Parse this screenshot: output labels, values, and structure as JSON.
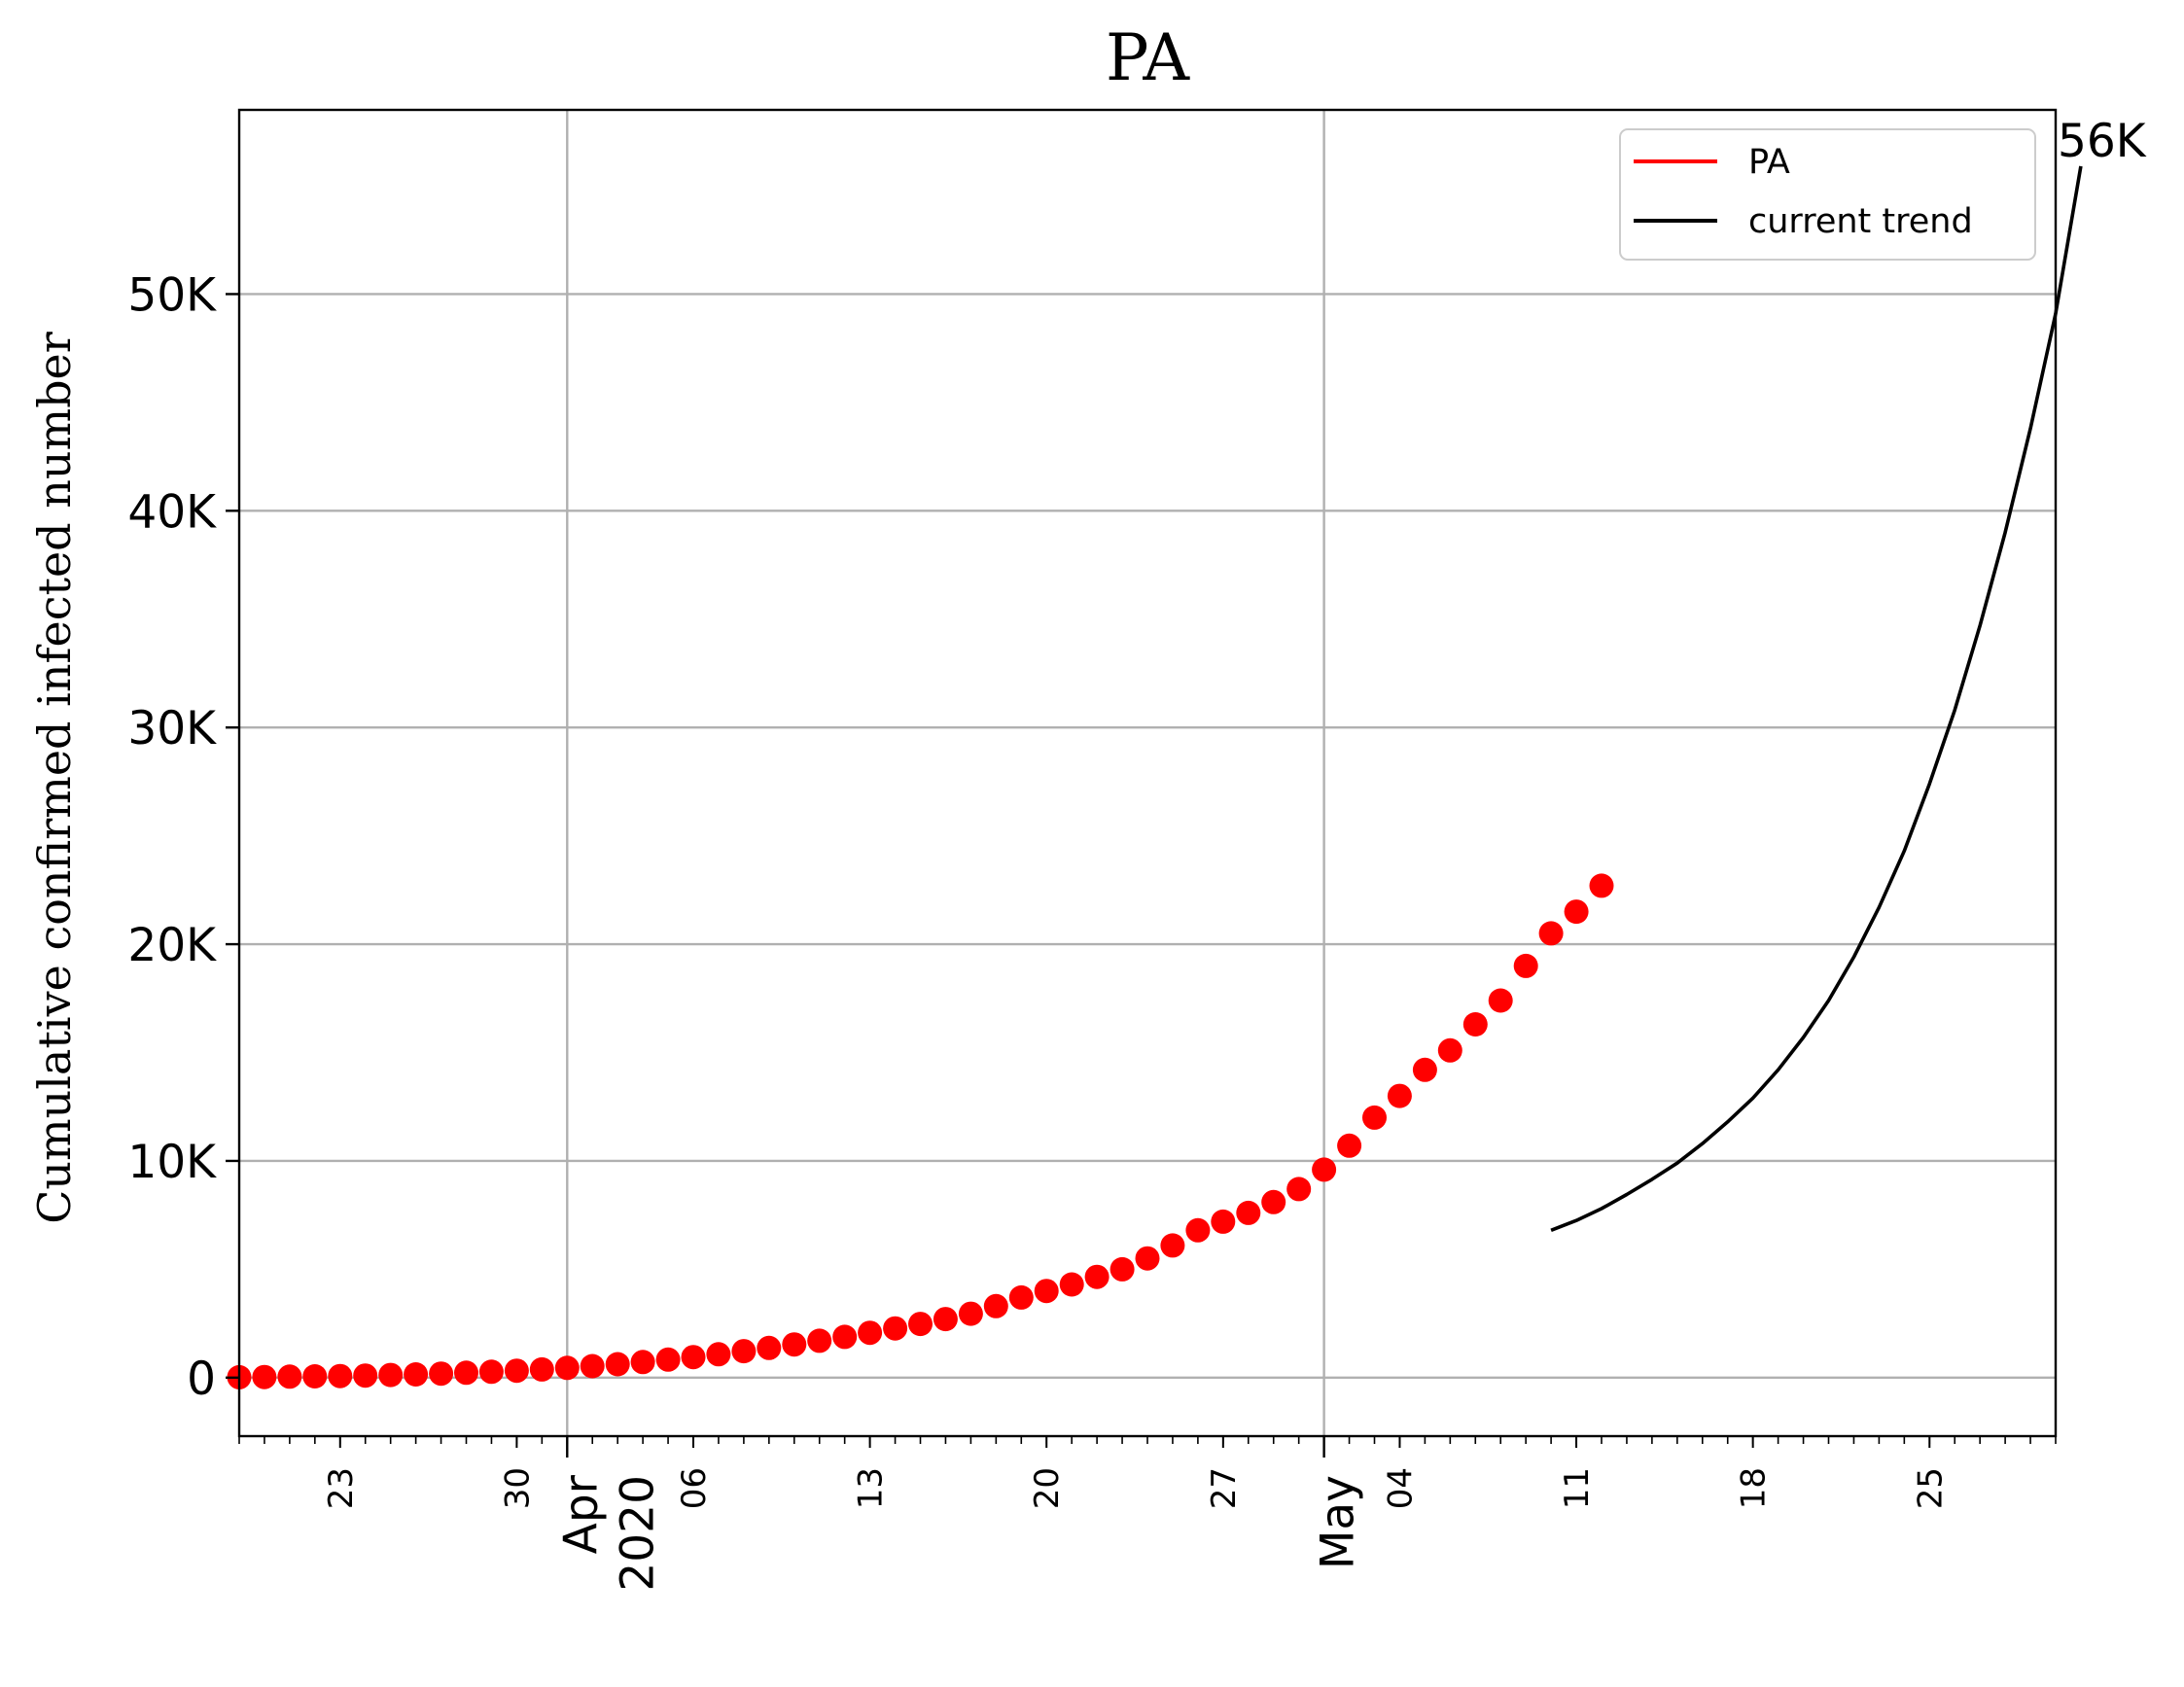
{
  "chart_data": {
    "type": "scatter",
    "title": "PA",
    "xlabel": "",
    "ylabel": "Cumulative confirmed infected number",
    "x_range": [
      "2020-03-19",
      "2020-05-30"
    ],
    "y_range": [
      -2700,
      58500
    ],
    "y_ticks": [
      {
        "value": 0,
        "label": "0"
      },
      {
        "value": 10000,
        "label": "10K"
      },
      {
        "value": 20000,
        "label": "20K"
      },
      {
        "value": 30000,
        "label": "30K"
      },
      {
        "value": 40000,
        "label": "40K"
      },
      {
        "value": 50000,
        "label": "50K"
      }
    ],
    "x_minor_ticks": [
      {
        "date": "2020-03-23",
        "label": "23"
      },
      {
        "date": "2020-03-30",
        "label": "30"
      },
      {
        "date": "2020-04-06",
        "label": "06"
      },
      {
        "date": "2020-04-13",
        "label": "13"
      },
      {
        "date": "2020-04-20",
        "label": "20"
      },
      {
        "date": "2020-04-27",
        "label": "27"
      },
      {
        "date": "2020-05-04",
        "label": "04"
      },
      {
        "date": "2020-05-11",
        "label": "11"
      },
      {
        "date": "2020-05-18",
        "label": "18"
      },
      {
        "date": "2020-05-25",
        "label": "25"
      }
    ],
    "x_major_ticks": [
      {
        "date": "2020-04-01",
        "label": "Apr\n2020"
      },
      {
        "date": "2020-05-01",
        "label": "May"
      }
    ],
    "grid": true,
    "legend_position": "top-right",
    "series": [
      {
        "name": "PA",
        "kind": "markers",
        "color": "#ff0000",
        "start_date": "2020-03-19",
        "values": [
          20,
          30,
          45,
          60,
          75,
          95,
          120,
          150,
          185,
          225,
          270,
          320,
          380,
          450,
          530,
          620,
          720,
          830,
          950,
          1080,
          1220,
          1370,
          1530,
          1700,
          1880,
          2070,
          2270,
          2480,
          2700,
          2950,
          3300,
          3700,
          4000,
          4300,
          4650,
          5000,
          5500,
          6100,
          6800,
          7200,
          7600,
          8100,
          8700,
          9600,
          10700,
          12000,
          13000,
          14200,
          15100,
          16300,
          17400,
          19000,
          20500,
          21500,
          22700
        ]
      },
      {
        "name": "current trend",
        "kind": "line",
        "color": "#000000",
        "start_date": "2020-05-10",
        "values": [
          6800,
          7250,
          7800,
          8450,
          9150,
          9900,
          10800,
          11800,
          12900,
          14200,
          15700,
          17400,
          19400,
          21700,
          24300,
          27400,
          30800,
          34700,
          39000,
          43800,
          49100,
          55900
        ]
      }
    ],
    "annotations": [
      {
        "text": "56K",
        "date": "2020-05-30",
        "value": 55900
      }
    ]
  },
  "colors": {
    "grid": "#b0b0b0",
    "axis": "#000000",
    "legend_border": "#cccccc"
  }
}
